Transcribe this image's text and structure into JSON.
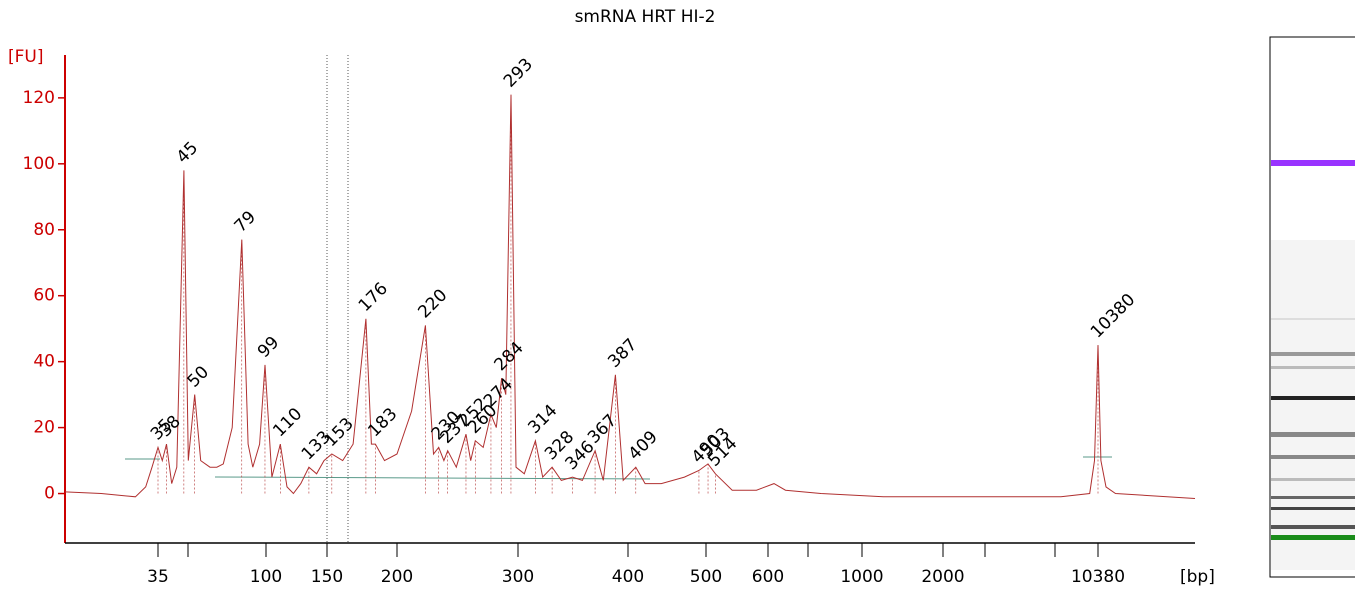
{
  "chart_data": {
    "type": "line",
    "title": "smRNA HRT HI-2",
    "y_label": "[FU]",
    "x_label": "[bp]",
    "color": "#b03030",
    "ylim": [
      -15,
      133
    ],
    "yticks": [
      0,
      20,
      40,
      60,
      80,
      100,
      120
    ],
    "xlim": [
      14,
      29000
    ],
    "xticks": [
      35,
      100,
      150,
      200,
      300,
      400,
      500,
      600,
      1000,
      2000,
      10380
    ],
    "trace": {
      "x": [
        14,
        20,
        28,
        31,
        33,
        35,
        36.5,
        38,
        40,
        42,
        45,
        47,
        50,
        53,
        58,
        62,
        66,
        72,
        79,
        84,
        88,
        94,
        99,
        104,
        110,
        115,
        120,
        126,
        133,
        140,
        147,
        153,
        160,
        167,
        176,
        180,
        183,
        190,
        200,
        210,
        220,
        226,
        230,
        234,
        237,
        244,
        252,
        256,
        260,
        267,
        274,
        279,
        284,
        288,
        293,
        298,
        305,
        314,
        320,
        328,
        336,
        346,
        355,
        367,
        375,
        387,
        395,
        409,
        420,
        440,
        470,
        490,
        503,
        514,
        540,
        580,
        620,
        660,
        800,
        1200,
        3000,
        7000,
        9500,
        10000,
        10380,
        10700,
        11300,
        12500,
        29000
      ],
      "y": [
        0.5,
        0,
        -1,
        2,
        8,
        14,
        10,
        15,
        3,
        8,
        98,
        10,
        30,
        10,
        8,
        8,
        9,
        20,
        77,
        15,
        8,
        15,
        39,
        5,
        15,
        2,
        0,
        3,
        8,
        6,
        10,
        12,
        10,
        15,
        53,
        15,
        15,
        10,
        12,
        25,
        51,
        12,
        14,
        10,
        13,
        8,
        18,
        10,
        16,
        14,
        24,
        20,
        35,
        30,
        121,
        8,
        6,
        16,
        5,
        8,
        4,
        5,
        4,
        13,
        4,
        36,
        4,
        8,
        3,
        3,
        5,
        7,
        9,
        6,
        1,
        1,
        3,
        1,
        0,
        -1,
        -1,
        -1,
        0,
        10,
        45,
        10,
        2,
        0,
        -1.5
      ]
    },
    "lower_marker": {
      "x": 35,
      "y": 14,
      "color": "#2e8b2e"
    },
    "upper_marker": {
      "x": 10380,
      "y": 45,
      "color": "#9933ff"
    },
    "peaks": {
      "x": [
        38,
        45,
        50,
        79,
        99,
        110,
        133,
        153,
        176,
        183,
        220,
        230,
        237,
        252,
        260,
        274,
        284,
        293,
        314,
        328,
        346,
        367,
        387,
        409,
        490,
        503,
        514
      ],
      "y": [
        15,
        98,
        30,
        77,
        39,
        15,
        8,
        12,
        53,
        15,
        51,
        14,
        13,
        18,
        16,
        24,
        35,
        121,
        16,
        8,
        5,
        13,
        36,
        8,
        7,
        9,
        6
      ]
    }
  }
}
